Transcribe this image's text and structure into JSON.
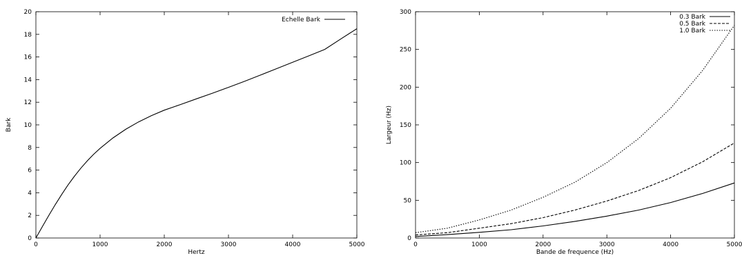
{
  "chart_data": [
    {
      "type": "line",
      "title": "",
      "xlabel": "Hertz",
      "ylabel": "Bark",
      "xlim": [
        0,
        5000
      ],
      "ylim": [
        0,
        20
      ],
      "xticks": [
        "0",
        "1000",
        "2000",
        "3000",
        "4000",
        "5000"
      ],
      "yticks": [
        "0",
        "2",
        "4",
        "6",
        "8",
        "10",
        "12",
        "14",
        "16",
        "18",
        "20"
      ],
      "grid": false,
      "legend_position": "top-right",
      "series": [
        {
          "name": "Echelle Bark",
          "dash": "solid",
          "x": [
            0,
            100,
            200,
            300,
            400,
            500,
            600,
            700,
            800,
            900,
            1000,
            1200,
            1400,
            1600,
            1800,
            2000,
            2250,
            2500,
            2750,
            3000,
            3250,
            3500,
            3750,
            4000,
            4250,
            4500,
            4750,
            5000
          ],
          "y": [
            0,
            1.0,
            1.98,
            2.93,
            3.83,
            4.68,
            5.46,
            6.17,
            6.82,
            7.4,
            7.92,
            8.84,
            9.61,
            10.26,
            10.82,
            11.3,
            11.79,
            12.3,
            12.8,
            13.32,
            13.85,
            14.4,
            14.97,
            15.53,
            16.1,
            16.67,
            17.6,
            18.5
          ]
        }
      ]
    },
    {
      "type": "line",
      "title": "",
      "xlabel": "Bande de frequence (Hz)",
      "ylabel": "Largeur (Hz)",
      "xlim": [
        0,
        5000
      ],
      "ylim": [
        0,
        300
      ],
      "xticks": [
        "0",
        "1000",
        "2000",
        "3000",
        "4000",
        "5000"
      ],
      "yticks": [
        "0",
        "50",
        "100",
        "150",
        "200",
        "250",
        "300"
      ],
      "grid": false,
      "legend_position": "top-right",
      "series": [
        {
          "name": "0.3 Bark",
          "dash": "solid",
          "x": [
            0,
            500,
            1000,
            1500,
            2000,
            2500,
            3000,
            3500,
            4000,
            4500,
            5000
          ],
          "y": [
            2,
            4.5,
            7.5,
            11,
            16,
            22,
            29,
            37,
            47,
            59,
            73
          ]
        },
        {
          "name": "0.5 Bark",
          "dash": "dashed",
          "x": [
            0,
            500,
            1000,
            1500,
            2000,
            2500,
            3000,
            3500,
            4000,
            4500,
            5000
          ],
          "y": [
            4,
            7,
            13,
            19,
            27,
            37,
            49,
            63,
            80,
            101,
            126
          ]
        },
        {
          "name": "1.0 Bark",
          "dash": "dotted",
          "x": [
            0,
            500,
            1000,
            1500,
            2000,
            2500,
            3000,
            3500,
            4000,
            4500,
            5000
          ],
          "y": [
            7,
            13,
            24,
            37,
            54,
            74,
            100,
            132,
            172,
            222,
            282
          ]
        }
      ]
    }
  ]
}
